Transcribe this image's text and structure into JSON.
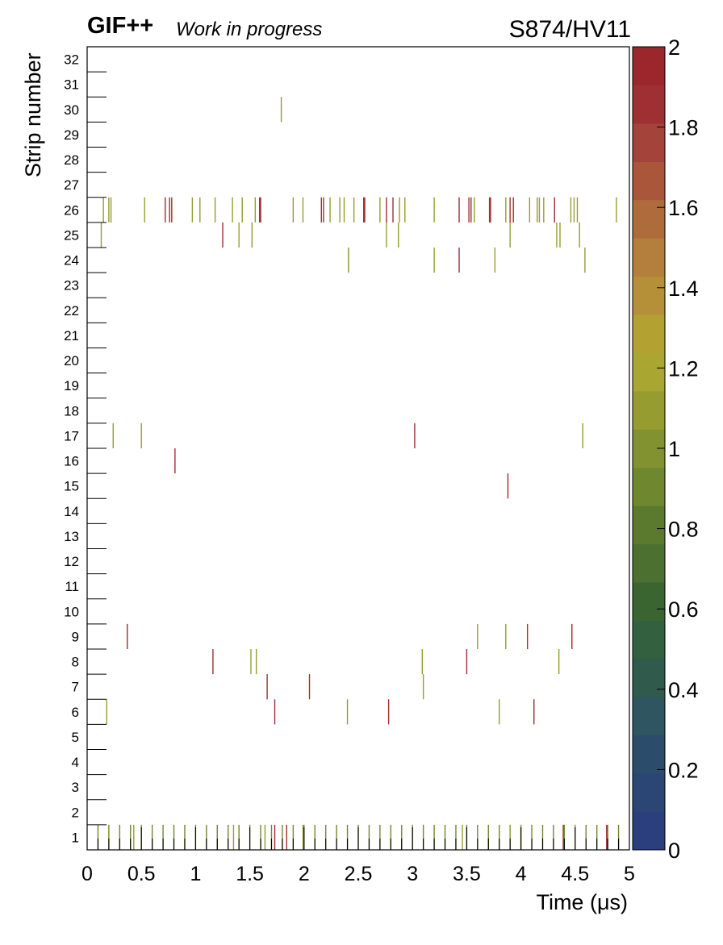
{
  "header": {
    "experiment": "GIF++",
    "status": "Work in progress",
    "run": "S874/HV11"
  },
  "chart_data": {
    "type": "heatmap",
    "xlabel": "Time (μs)",
    "ylabel": "Strip number",
    "xlim": [
      0,
      5
    ],
    "ylim": [
      0.5,
      32.5
    ],
    "x_ticks": [
      "0",
      "0.5",
      "1",
      "1.5",
      "2",
      "2.5",
      "3",
      "3.5",
      "4",
      "4.5",
      "5"
    ],
    "y_ticks": [
      "1",
      "2",
      "3",
      "4",
      "5",
      "6",
      "7",
      "8",
      "9",
      "10",
      "11",
      "12",
      "13",
      "14",
      "15",
      "16",
      "17",
      "18",
      "19",
      "20",
      "21",
      "22",
      "23",
      "24",
      "25",
      "26",
      "27",
      "28",
      "29",
      "30",
      "31",
      "32"
    ],
    "colorbar": {
      "range": [
        0,
        2
      ],
      "ticks": [
        "0",
        "0.2",
        "0.4",
        "0.6",
        "0.8",
        "1",
        "1.2",
        "1.4",
        "1.6",
        "1.8",
        "2"
      ],
      "colors": [
        "#2a3f7c",
        "#2b4574",
        "#2b4c6b",
        "#2f5560",
        "#2f5a4c",
        "#33603f",
        "#3a6530",
        "#4b7030",
        "#5c7a2e",
        "#6f8830",
        "#839230",
        "#979c31",
        "#a9a632",
        "#b3a132",
        "#b59038",
        "#b47f3d",
        "#ae6c3c",
        "#a9563a",
        "#a4433a",
        "#9e2f32",
        "#9b262c"
      ]
    },
    "series": [
      {
        "strip": 1,
        "values": [
          [
            0.1,
            0.9
          ],
          [
            0.2,
            0.9
          ],
          [
            0.3,
            0.9
          ],
          [
            0.4,
            0.9
          ],
          [
            0.5,
            0.9
          ],
          [
            0.6,
            0.9
          ],
          [
            0.7,
            0.9
          ],
          [
            0.8,
            0.9
          ],
          [
            0.9,
            0.9
          ],
          [
            1.0,
            0.9
          ],
          [
            1.1,
            0.9
          ],
          [
            1.2,
            0.9
          ],
          [
            1.3,
            0.9
          ],
          [
            1.4,
            0.9
          ],
          [
            1.5,
            0.9
          ],
          [
            1.6,
            0.9
          ],
          [
            1.7,
            0.9
          ],
          [
            1.8,
            0.9
          ],
          [
            1.9,
            0.9
          ],
          [
            2.0,
            0.9
          ],
          [
            2.1,
            0.9
          ],
          [
            2.2,
            0.9
          ],
          [
            2.3,
            0.9
          ],
          [
            2.4,
            0.9
          ],
          [
            2.5,
            0.9
          ],
          [
            2.6,
            0.9
          ],
          [
            2.7,
            0.9
          ],
          [
            2.8,
            0.9
          ],
          [
            2.9,
            0.9
          ],
          [
            3.0,
            0.9
          ],
          [
            3.1,
            0.9
          ],
          [
            3.2,
            0.9
          ],
          [
            3.3,
            0.9
          ],
          [
            3.4,
            0.9
          ],
          [
            3.5,
            0.9
          ],
          [
            3.6,
            0.9
          ],
          [
            3.7,
            0.9
          ],
          [
            3.8,
            0.9
          ],
          [
            3.9,
            0.9
          ],
          [
            4.0,
            0.9
          ],
          [
            4.1,
            0.9
          ],
          [
            4.2,
            0.9
          ],
          [
            4.3,
            0.9
          ],
          [
            4.4,
            0.9
          ],
          [
            4.5,
            0.9
          ],
          [
            4.6,
            0.9
          ],
          [
            4.7,
            0.9
          ],
          [
            4.8,
            0.9
          ],
          [
            4.9,
            0.9
          ],
          [
            0.43,
            1.1
          ],
          [
            1.35,
            1.1
          ],
          [
            1.64,
            1.1
          ],
          [
            1.73,
            2.0
          ],
          [
            1.84,
            1.9
          ],
          [
            1.99,
            1.1
          ],
          [
            3.0,
            1.0
          ],
          [
            3.46,
            1.1
          ],
          [
            3.9,
            1.1
          ],
          [
            4.0,
            1.1
          ],
          [
            4.39,
            1.9
          ],
          [
            4.5,
            1.1
          ],
          [
            4.79,
            1.9
          ]
        ]
      },
      {
        "strip": 6,
        "values": [
          [
            0.18,
            1.1
          ],
          [
            1.73,
            1.9
          ],
          [
            2.4,
            1.1
          ],
          [
            2.78,
            1.9
          ],
          [
            3.8,
            1.1
          ],
          [
            4.12,
            1.9
          ]
        ]
      },
      {
        "strip": 7,
        "values": [
          [
            1.66,
            1.9
          ],
          [
            2.05,
            1.9
          ],
          [
            3.1,
            1.1
          ]
        ]
      },
      {
        "strip": 8,
        "values": [
          [
            1.16,
            1.9
          ],
          [
            1.51,
            1.1
          ],
          [
            1.56,
            1.1
          ],
          [
            3.09,
            1.1
          ],
          [
            3.5,
            1.9
          ],
          [
            4.35,
            1.1
          ]
        ]
      },
      {
        "strip": 9,
        "values": [
          [
            0.37,
            1.9
          ],
          [
            3.6,
            1.1
          ],
          [
            3.86,
            1.1
          ],
          [
            4.06,
            1.9
          ],
          [
            4.47,
            1.9
          ]
        ]
      },
      {
        "strip": 15,
        "values": [
          [
            3.88,
            1.9
          ]
        ]
      },
      {
        "strip": 16,
        "values": [
          [
            0.81,
            1.9
          ]
        ]
      },
      {
        "strip": 17,
        "values": [
          [
            0.24,
            1.1
          ],
          [
            0.5,
            1.1
          ],
          [
            3.02,
            1.9
          ],
          [
            4.57,
            1.1
          ]
        ]
      },
      {
        "strip": 24,
        "values": [
          [
            2.41,
            1.0
          ],
          [
            3.2,
            1.1
          ],
          [
            3.43,
            1.9
          ],
          [
            3.76,
            1.1
          ],
          [
            4.59,
            1.1
          ]
        ]
      },
      {
        "strip": 25,
        "values": [
          [
            0.13,
            1.1
          ],
          [
            1.25,
            1.9
          ],
          [
            1.4,
            1.1
          ],
          [
            1.52,
            1.1
          ],
          [
            2.76,
            1.1
          ],
          [
            2.87,
            1.1
          ],
          [
            3.9,
            1.1
          ],
          [
            4.33,
            1.1
          ],
          [
            4.36,
            1.1
          ],
          [
            4.54,
            1.1
          ]
        ]
      },
      {
        "strip": 26,
        "values": [
          [
            0.15,
            1.1
          ],
          [
            0.2,
            1.1
          ],
          [
            0.22,
            1.1
          ],
          [
            0.53,
            1.1
          ],
          [
            0.72,
            1.9
          ],
          [
            0.76,
            1.9
          ],
          [
            0.78,
            1.9
          ],
          [
            0.97,
            1.1
          ],
          [
            1.04,
            1.1
          ],
          [
            1.18,
            1.1
          ],
          [
            1.34,
            1.1
          ],
          [
            1.43,
            1.1
          ],
          [
            1.55,
            1.1
          ],
          [
            1.59,
            1.9
          ],
          [
            1.6,
            1.9
          ],
          [
            1.9,
            1.1
          ],
          [
            1.99,
            1.1
          ],
          [
            2.16,
            1.9
          ],
          [
            2.18,
            1.9
          ],
          [
            2.24,
            1.1
          ],
          [
            2.33,
            1.1
          ],
          [
            2.37,
            1.1
          ],
          [
            2.46,
            1.1
          ],
          [
            2.55,
            1.9
          ],
          [
            2.56,
            1.9
          ],
          [
            2.7,
            1.1
          ],
          [
            2.76,
            1.9
          ],
          [
            2.82,
            1.9
          ],
          [
            2.88,
            1.1
          ],
          [
            2.93,
            1.1
          ],
          [
            3.2,
            1.1
          ],
          [
            3.43,
            1.9
          ],
          [
            3.52,
            1.9
          ],
          [
            3.54,
            1.9
          ],
          [
            3.57,
            1.1
          ],
          [
            3.71,
            1.9
          ],
          [
            3.72,
            1.9
          ],
          [
            3.86,
            1.1
          ],
          [
            3.9,
            1.9
          ],
          [
            3.93,
            1.9
          ],
          [
            4.08,
            1.1
          ],
          [
            4.15,
            1.1
          ],
          [
            4.17,
            1.1
          ],
          [
            4.21,
            1.1
          ],
          [
            4.31,
            1.9
          ],
          [
            4.46,
            1.1
          ],
          [
            4.49,
            1.1
          ],
          [
            4.52,
            1.1
          ],
          [
            4.88,
            1.1
          ]
        ]
      },
      {
        "strip": 30,
        "values": [
          [
            1.79,
            1.1
          ]
        ]
      }
    ]
  }
}
